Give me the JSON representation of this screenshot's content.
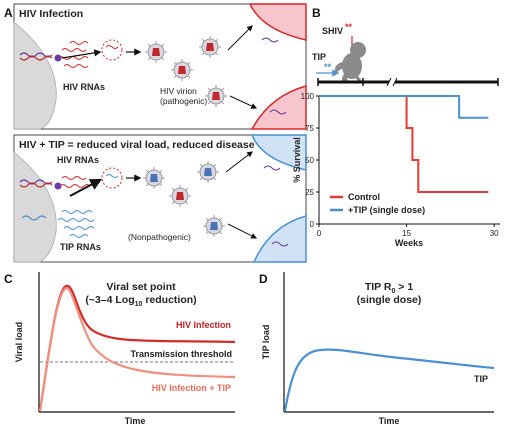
{
  "panels": {
    "a": {
      "label": "A",
      "top_title": "HIV Infection",
      "top_rna_label": "HIV RNAs",
      "virion_label_1": "HIV virion",
      "virion_label_2": "(pathogenic)",
      "bottom_title": "HIV + TIP = reduced viral load, reduced disease",
      "bottom_rna_label": "HIV RNAs",
      "tip_rna_label": "TIP RNAs",
      "nonpath_label": "(Nonpathogenic)"
    },
    "b": {
      "label": "B",
      "shiv_label": "SHIV",
      "tip_label": "TIP",
      "star": "**"
    },
    "c": {
      "label": "C",
      "title_1": "Viral set point",
      "title_2a": "(~3–4 Log",
      "title_2sub": "10",
      "title_2b": " reduction)",
      "ylabel": "Viral load",
      "xlabel": "Time",
      "threshold_label": "Transmission threshold",
      "hiv_label": "HIV Infection",
      "hiv_tip_label": "HIV Infection + TIP"
    },
    "d": {
      "label": "D",
      "title_1a": "TIP R",
      "title_1sub": "0",
      "title_1b": " > 1",
      "title_2": "(single dose)",
      "ylabel": "TIP load",
      "xlabel": "Time",
      "curve_label": "TIP"
    }
  },
  "chart_data": {
    "type": "line",
    "title": "",
    "xlabel": "Weeks",
    "ylabel": "% Survival",
    "xlim": [
      0,
      31
    ],
    "ylim": [
      0,
      100
    ],
    "xticks": [
      0,
      15,
      30
    ],
    "yticks": [
      0,
      25,
      50,
      75,
      100
    ],
    "step": true,
    "legend_placement": "bottom-left",
    "series": [
      {
        "name": "Control",
        "color": "#e53b32",
        "x": [
          0,
          15,
          15,
          16,
          16,
          17,
          17,
          29
        ],
        "y": [
          100,
          100,
          75,
          75,
          50,
          50,
          25,
          25
        ]
      },
      {
        "name": "+TIP (single dose)",
        "color": "#4a90d0",
        "x": [
          0,
          24,
          24,
          29
        ],
        "y": [
          100,
          100,
          83,
          83
        ]
      }
    ]
  },
  "colors": {
    "hiv_red": "#d42a2a",
    "tip_blue": "#4a90d0",
    "light_red": "#f28b82",
    "cell_gray": "#d9d9d9"
  }
}
